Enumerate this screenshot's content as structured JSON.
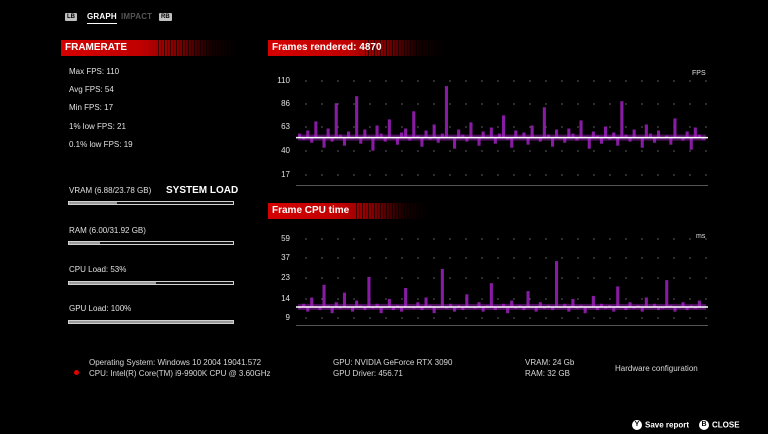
{
  "tabs": {
    "lb": "LB",
    "graph": "GRAPH",
    "impact": "IMPACT",
    "rb": "RB"
  },
  "framerate": {
    "title": "FRAMERATE",
    "max": "Max FPS: 110",
    "avg": "Avg FPS: 54",
    "min": "Min FPS: 17",
    "low1": "1% low FPS: 21",
    "low01": "0.1% low FPS: 19"
  },
  "system_load": {
    "title": "SYSTEM LOAD",
    "vram": {
      "label": "VRAM (6.88/23.78 GB)",
      "fraction": 0.29
    },
    "ram": {
      "label": "RAM (6.00/31.92 GB)",
      "fraction": 0.19
    },
    "cpu": {
      "label": "CPU Load: 53%",
      "fraction": 0.53
    },
    "gpu": {
      "label": "GPU Load: 100%",
      "fraction": 1.0
    }
  },
  "charts": {
    "accent_color": "#a020c0",
    "avg_line_color": "#ffffff"
  },
  "chart_data": [
    {
      "type": "line",
      "title": "Frames rendered: 4870",
      "ylabel": "FPS",
      "yticks": [
        "110",
        "86",
        "63",
        "40",
        "17"
      ],
      "ylim": [
        17,
        110
      ],
      "average": 54,
      "series": [
        {
          "values": [
            58,
            52,
            61,
            49,
            70,
            55,
            44,
            63,
            50,
            88,
            57,
            46,
            60,
            53,
            95,
            48,
            62,
            55,
            41,
            66,
            58,
            50,
            72,
            54,
            47,
            59,
            63,
            51,
            80,
            56,
            45,
            61,
            52,
            67,
            49,
            58,
            105,
            55,
            43,
            62,
            57,
            50,
            69,
            54,
            46,
            60,
            53,
            64,
            48,
            58,
            76,
            52,
            44,
            61,
            55,
            59,
            47,
            66,
            53,
            50,
            84,
            57,
            45,
            62,
            54,
            49,
            63,
            58,
            51,
            71,
            55,
            43,
            60,
            56,
            48,
            65,
            52,
            59,
            46,
            90,
            57,
            50,
            62,
            54,
            44,
            67,
            58,
            49,
            61,
            53,
            56,
            47,
            73,
            55,
            51,
            60,
            42,
            64,
            57,
            52
          ]
        }
      ]
    },
    {
      "type": "line",
      "title": "Frame CPU time",
      "ylabel": "ms",
      "yticks": [
        "59",
        "37",
        "23",
        "14",
        "9"
      ],
      "ylim": [
        9,
        59
      ],
      "average": 16,
      "series": [
        {
          "values": [
            15,
            18,
            13,
            22,
            16,
            14,
            30,
            17,
            12,
            19,
            15,
            25,
            16,
            13,
            20,
            17,
            14,
            35,
            15,
            18,
            12,
            16,
            21,
            14,
            17,
            13,
            28,
            16,
            15,
            19,
            14,
            22,
            17,
            12,
            16,
            40,
            15,
            18,
            13,
            17,
            14,
            24,
            16,
            15,
            19,
            13,
            17,
            31,
            14,
            16,
            18,
            12,
            20,
            15,
            17,
            14,
            26,
            16,
            13,
            19,
            15,
            17,
            14,
            45,
            16,
            18,
            13,
            21,
            15,
            17,
            12,
            16,
            23,
            14,
            18,
            15,
            17,
            13,
            29,
            16,
            14,
            19,
            15,
            17,
            13,
            22,
            16,
            18,
            14,
            15,
            33,
            17,
            13,
            16,
            19,
            14,
            17,
            15,
            20,
            16
          ]
        }
      ]
    }
  ],
  "footer": {
    "os": "Operating System: Windows 10 2004 19041.572",
    "cpu": "CPU: Intel(R) Core(TM) i9-9900K CPU @ 3.60GHz",
    "gpu": "GPU: NVIDIA GeForce RTX 3090",
    "gpu_driver": "GPU Driver: 456.71",
    "vram": "VRAM: 24 Gb",
    "ram": "RAM: 32 GB",
    "hw_config": "Hardware configuration"
  },
  "actions": {
    "save_key": "Y",
    "save_label": "Save report",
    "close_key": "B",
    "close_label": "CLOSE"
  }
}
